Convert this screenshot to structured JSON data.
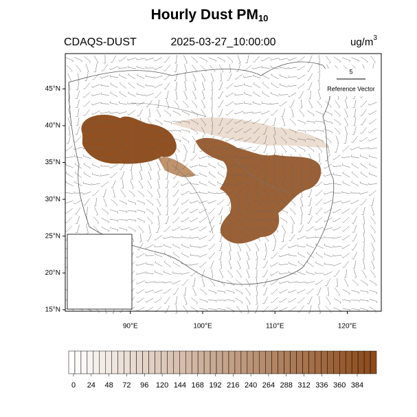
{
  "map": {
    "title": {
      "text": "Hourly Dust PM",
      "subscript": "10"
    },
    "model": "CDAQS-DUST",
    "time": "2025-03-27_10:00:00",
    "units": {
      "text": "ug/m",
      "superscript": "3"
    },
    "reference_vector": {
      "value": 5,
      "label": "Reference Vector"
    },
    "latlim": [
      14.8,
      49.8
    ],
    "lonlim": [
      81,
      124.7
    ],
    "lat_ticks": [
      {
        "value": 45,
        "label": "45°N"
      },
      {
        "value": 40,
        "label": "40°N"
      },
      {
        "value": 35,
        "label": "35°N"
      },
      {
        "value": 30,
        "label": "30°N"
      },
      {
        "value": 25,
        "label": "25°N"
      },
      {
        "value": 20,
        "label": "20°N"
      },
      {
        "value": 15,
        "label": "15°N"
      }
    ],
    "lon_ticks": [
      {
        "value": 90,
        "label": "90°E"
      },
      {
        "value": 100,
        "label": "100°E"
      },
      {
        "value": 110,
        "label": "110°E"
      },
      {
        "value": 120,
        "label": "120°E"
      }
    ],
    "colorbar": {
      "ticks": [
        0,
        24,
        48,
        72,
        96,
        120,
        144,
        168,
        192,
        216,
        240,
        264,
        288,
        312,
        336,
        360,
        384
      ]
    }
  }
}
